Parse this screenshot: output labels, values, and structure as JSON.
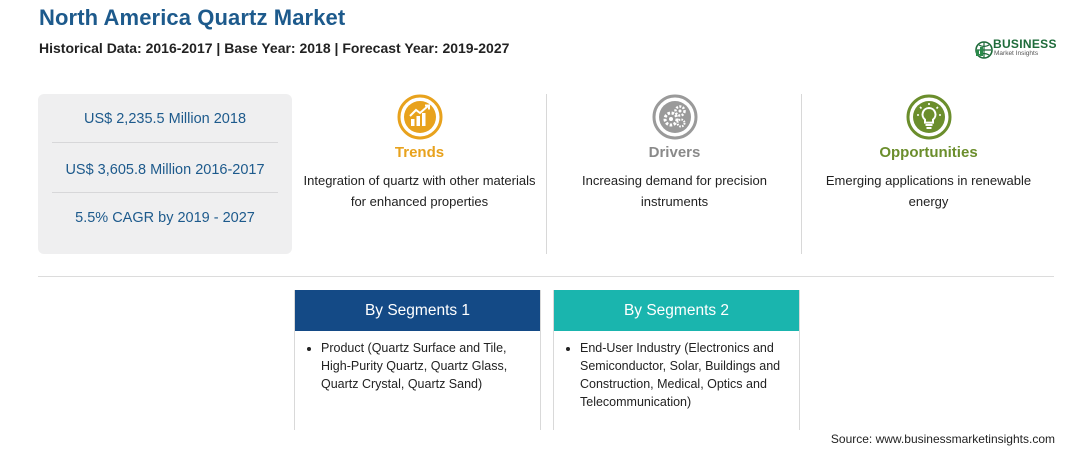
{
  "header": {
    "title": "North America Quartz Market",
    "subtitle": "Historical Data: 2016-2017 | Base Year: 2018 | Forecast Year: 2019-2027"
  },
  "logo": {
    "word1": "BUSINESS",
    "word2": "Market Insights",
    "icon": "globe-logo-icon"
  },
  "stats": [
    "US$ 2,235.5 Million 2018",
    "US$ 3,605.8 Million 2016-2017",
    "5.5% CAGR by 2019 - 2027"
  ],
  "trends": {
    "icon": "chart-growth-icon",
    "heading": "Trends",
    "text": "Integration of quartz with other materials for enhanced properties",
    "color": "#e8a21d"
  },
  "drivers": {
    "icon": "gears-icon",
    "heading": "Drivers",
    "text": "Increasing demand for precision instruments",
    "color": "#8a8a8a"
  },
  "opportunities": {
    "icon": "lightbulb-icon",
    "heading": "Opportunities",
    "text": "Emerging applications in renewable energy",
    "color": "#6b8e2c"
  },
  "segments": [
    {
      "title": "By Segments 1",
      "item": "Product (Quartz Surface and Tile, High-Purity Quartz, Quartz Glass, Quartz Crystal, Quartz Sand)",
      "color": "#144a86"
    },
    {
      "title": "By Segments 2",
      "item": "End-User Industry (Electronics and Semiconductor, Solar, Buildings and Construction, Medical, Optics and Telecommunication)",
      "color": "#1ab5ae"
    }
  ],
  "source": "Source: www.businessmarketinsights.com"
}
